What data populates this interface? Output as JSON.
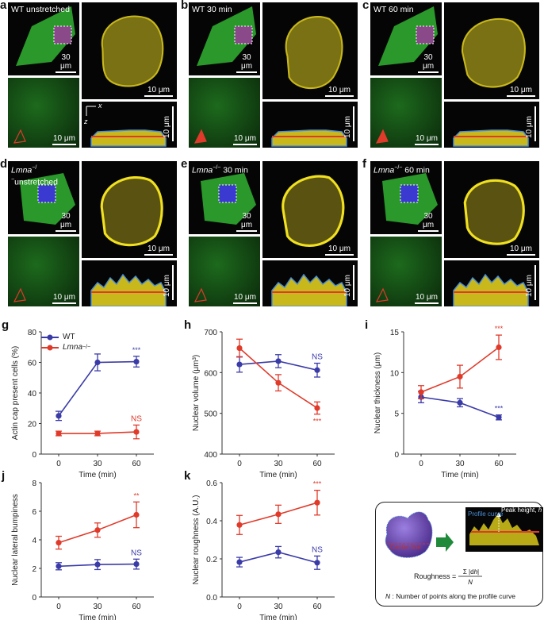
{
  "panels": {
    "a": {
      "letter": "a",
      "label": "WT unstretched",
      "scale_cell": "30 μm",
      "scale_zoom": "10 μm",
      "scale_nucleus": "10 μm",
      "scale_z": "10 μm",
      "axis_x": "x",
      "axis_z": "z"
    },
    "b": {
      "letter": "b",
      "label": "WT 30 min",
      "scale_cell": "30 μm",
      "scale_zoom": "10 μm",
      "scale_nucleus": "10 μm",
      "scale_z": "10 μm"
    },
    "c": {
      "letter": "c",
      "label": "WT 60 min",
      "scale_cell": "30 μm",
      "scale_zoom": "10 μm",
      "scale_nucleus": "10 μm",
      "scale_z": "10 μm"
    },
    "d": {
      "letter": "d",
      "label_italic": "Lmna",
      "label_sup": "−/−",
      "label_rest": "unstretched",
      "scale_cell": "30 μm",
      "scale_zoom": "10 μm",
      "scale_nucleus": "10 μm",
      "scale_z": "10 μm"
    },
    "e": {
      "letter": "e",
      "label_italic": "Lmna",
      "label_sup": "−/−",
      "label_rest": " 30 min",
      "scale_cell": "30 μm",
      "scale_zoom": "10 μm",
      "scale_nucleus": "10 μm",
      "scale_z": "10 μm"
    },
    "f": {
      "letter": "f",
      "label_italic": "Lmna",
      "label_sup": "−/−",
      "label_rest": " 60 min",
      "scale_cell": "30 μm",
      "scale_zoom": "10 μm",
      "scale_nucleus": "10 μm",
      "scale_z": "10 μm"
    }
  },
  "legend": {
    "wt": "WT",
    "lmna": "Lmna",
    "lmna_sup": "−/−"
  },
  "colors": {
    "wt": "#3b3ba8",
    "lmna": "#e03a2a",
    "actin": "#2fb82f",
    "nucleus": "#e6d51e",
    "profile": "#4a8fd8"
  },
  "chart_data": [
    {
      "panel": "g",
      "type": "line",
      "x": [
        0,
        30,
        60
      ],
      "xlabel": "Time (min)",
      "ylabel": "Actin cap present cells (%)",
      "ylim": [
        0,
        80
      ],
      "yticks": [
        0,
        20,
        40,
        60,
        80
      ],
      "series": [
        {
          "name": "WT",
          "values": [
            25,
            60,
            60.5
          ],
          "err": [
            3,
            5.5,
            3.5
          ],
          "annotation": "***"
        },
        {
          "name": "Lmna-/-",
          "values": [
            13.5,
            13.5,
            14.5
          ],
          "err": [
            1.5,
            1.5,
            4.5
          ],
          "annotation": "NS"
        }
      ]
    },
    {
      "panel": "h",
      "type": "line",
      "x": [
        0,
        30,
        60
      ],
      "xlabel": "Time (min)",
      "ylabel": "Nuclear volume (μm³)",
      "ylim": [
        400,
        700
      ],
      "yticks": [
        400,
        500,
        600,
        700
      ],
      "series": [
        {
          "name": "WT",
          "values": [
            620,
            628,
            606
          ],
          "err": [
            19,
            16,
            17
          ],
          "annotation": "NS"
        },
        {
          "name": "Lmna-/-",
          "values": [
            660,
            575,
            513
          ],
          "err": [
            22,
            20,
            15
          ],
          "annotation": "***"
        }
      ]
    },
    {
      "panel": "i",
      "type": "line",
      "x": [
        0,
        30,
        60
      ],
      "xlabel": "Time (min)",
      "ylabel": "Nuclear thickness (μm)",
      "ylim": [
        0,
        15
      ],
      "yticks": [
        0,
        5,
        10,
        15
      ],
      "series": [
        {
          "name": "WT",
          "values": [
            7.0,
            6.3,
            4.5
          ],
          "err": [
            0.7,
            0.5,
            0.3
          ],
          "annotation": "***"
        },
        {
          "name": "Lmna-/-",
          "values": [
            7.6,
            9.5,
            13.1
          ],
          "err": [
            0.8,
            1.4,
            1.5
          ],
          "annotation": "***"
        }
      ]
    },
    {
      "panel": "j",
      "type": "line",
      "x": [
        0,
        30,
        60
      ],
      "xlabel": "Time (min)",
      "ylabel": "Nuclear lateral bumpiness",
      "ylim": [
        0,
        8
      ],
      "yticks": [
        0,
        2,
        4,
        6,
        8
      ],
      "series": [
        {
          "name": "WT",
          "values": [
            2.15,
            2.27,
            2.3
          ],
          "err": [
            0.25,
            0.35,
            0.35
          ],
          "annotation": "NS"
        },
        {
          "name": "Lmna-/-",
          "values": [
            3.8,
            4.68,
            5.75
          ],
          "err": [
            0.45,
            0.5,
            0.9
          ],
          "annotation": "**"
        }
      ]
    },
    {
      "panel": "k",
      "type": "line",
      "x": [
        0,
        30,
        60
      ],
      "xlabel": "Time (min)",
      "ylabel": "Nuclear roughness (A.U.)",
      "ylim": [
        0.0,
        0.6
      ],
      "yticks": [
        "0.0",
        "0.2",
        "0.4",
        "0.6"
      ],
      "series": [
        {
          "name": "WT",
          "values": [
            0.183,
            0.235,
            0.18
          ],
          "err": [
            0.025,
            0.03,
            0.035
          ],
          "annotation": "NS"
        },
        {
          "name": "Lmna-/-",
          "values": [
            0.378,
            0.434,
            0.495
          ],
          "err": [
            0.05,
            0.048,
            0.065
          ],
          "annotation": "***"
        }
      ]
    }
  ],
  "diagram": {
    "peak_label": "Peak height, ",
    "peak_var": "h",
    "profile_label": "Profile curve",
    "center_label": "Center line",
    "formula_lhs": "Roughness =",
    "formula_num": "Σ |d",
    "formula_num_var": "h",
    "formula_num_end": "|",
    "formula_den": "N",
    "footnote_var": "N",
    "footnote": " : Number of points along the profile curve"
  }
}
